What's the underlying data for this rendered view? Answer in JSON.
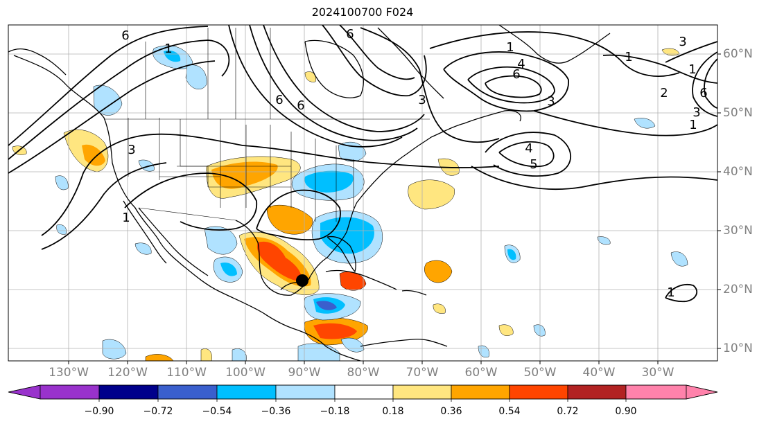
{
  "title": "2024100700 F024",
  "lat_labels": [
    "60°N",
    "50°N",
    "40°N",
    "30°N",
    "20°N",
    "10°N"
  ],
  "lon_labels": [
    "130°W",
    "120°W",
    "110°W",
    "100°W",
    "90°W",
    "80°W",
    "70°W",
    "60°W",
    "50°W",
    "40°W",
    "30°W"
  ],
  "colorbar": {
    "ticks": [
      "−0.90",
      "−0.72",
      "−0.54",
      "−0.36",
      "−0.18",
      "0.18",
      "0.36",
      "0.54",
      "0.72",
      "0.90"
    ],
    "colors": [
      "#9932cc",
      "#00008b",
      "#3a5fcd",
      "#00bfff",
      "#b0e2ff",
      "#ffffff",
      "#ffe680",
      "#ffa500",
      "#ff4500",
      "#b22222",
      "#ff82ab"
    ]
  },
  "contour_labels": [
    "6",
    "1",
    "3",
    "6",
    "6",
    "1",
    "4",
    "6",
    "3",
    "1",
    "3",
    "1",
    "2",
    "6",
    "3",
    "1",
    "4",
    "5",
    "3",
    "1",
    "1",
    "6"
  ],
  "marker": "storm-center-dot"
}
